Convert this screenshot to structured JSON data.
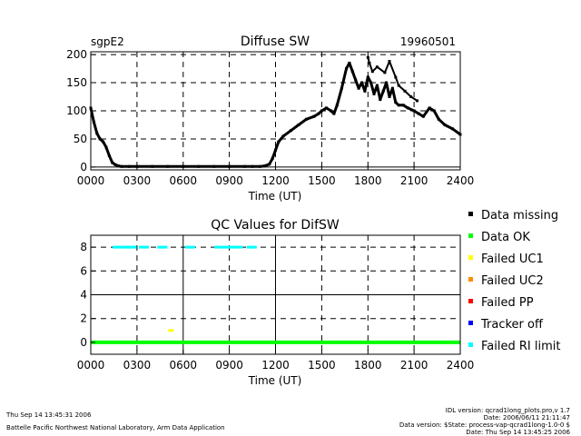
{
  "chart_data": [
    {
      "type": "scatter",
      "title": "Diffuse SW",
      "site_label": "sgpE2",
      "date_label": "19960501",
      "xlabel": "Time (UT)",
      "ylabel": "",
      "xlim": [
        0,
        24
      ],
      "ylim": [
        -5,
        205
      ],
      "x_ticks": [
        0,
        3,
        6,
        9,
        12,
        15,
        18,
        21,
        24
      ],
      "x_tick_labels": [
        "0000",
        "0300",
        "0600",
        "0900",
        "1200",
        "1500",
        "1800",
        "2100",
        "2400"
      ],
      "y_ticks": [
        0,
        50,
        100,
        150,
        200
      ],
      "y_tick_labels": [
        "0",
        "50",
        "100",
        "150",
        "200"
      ],
      "grid": "dashed",
      "series": [
        {
          "color": "#000000",
          "x": [
            0.0,
            0.2,
            0.4,
            0.6,
            0.8,
            1.0,
            1.2,
            1.4,
            1.6,
            1.8,
            2.0,
            2.5,
            3.0,
            4.0,
            5.0,
            6.0,
            7.0,
            8.0,
            9.0,
            10.0,
            10.5,
            11.0,
            11.3,
            11.6,
            11.8,
            12.0,
            12.2,
            12.5,
            13.0,
            13.5,
            14.0,
            14.5,
            14.8,
            15.0,
            15.3,
            15.6,
            15.8,
            16.0,
            16.3,
            16.6,
            16.8,
            17.0,
            17.2,
            17.4,
            17.6,
            17.8,
            18.0,
            18.2,
            18.4,
            18.6,
            18.8,
            19.0,
            19.2,
            19.4,
            19.6,
            19.8,
            20.0,
            20.3,
            20.6,
            21.0,
            21.3,
            21.6,
            22.0,
            22.3,
            22.6,
            23.0,
            23.5,
            24.0
          ],
          "y": [
            105,
            80,
            60,
            50,
            45,
            35,
            20,
            8,
            4,
            2,
            1,
            1,
            1,
            1,
            1,
            1,
            1,
            1,
            1,
            1,
            1,
            1,
            2,
            5,
            15,
            30,
            45,
            55,
            65,
            75,
            85,
            90,
            95,
            100,
            105,
            100,
            95,
            110,
            140,
            175,
            185,
            170,
            155,
            140,
            150,
            135,
            160,
            150,
            130,
            145,
            120,
            135,
            150,
            125,
            140,
            115,
            110,
            110,
            105,
            100,
            95,
            90,
            105,
            100,
            85,
            75,
            68,
            58
          ]
        },
        {
          "color": "#000000",
          "x": [
            18.0,
            18.1,
            18.3,
            18.6,
            19.1,
            19.4,
            19.8,
            20.0,
            20.4,
            20.8,
            21.2
          ],
          "y": [
            195,
            185,
            170,
            178,
            168,
            188,
            160,
            145,
            135,
            125,
            118
          ]
        }
      ]
    },
    {
      "type": "scatter",
      "title": "QC Values for DifSW",
      "xlabel": "Time (UT)",
      "ylabel": "",
      "xlim": [
        0,
        24
      ],
      "ylim": [
        -1,
        9
      ],
      "x_ticks": [
        0,
        3,
        6,
        9,
        12,
        15,
        18,
        21,
        24
      ],
      "x_tick_labels": [
        "0000",
        "0300",
        "0600",
        "0900",
        "1200",
        "1500",
        "1800",
        "2100",
        "2400"
      ],
      "y_ticks": [
        0,
        2,
        4,
        6,
        8
      ],
      "y_tick_labels": [
        "0",
        "2",
        "4",
        "6",
        "8"
      ],
      "grid": "dashed",
      "series": [
        {
          "name": "Data OK",
          "color": "#00ff00",
          "x": [
            0,
            24
          ],
          "y": [
            0,
            0
          ]
        },
        {
          "name": "Failed UC1",
          "color": "#ffff00",
          "x": [
            5.2
          ],
          "y": [
            1
          ]
        },
        {
          "name": "Failed RI limit",
          "color": "#00ffff",
          "x": [
            1.6,
            1.9,
            2.2,
            2.5,
            2.8,
            3.3,
            3.6,
            4.5,
            4.8,
            6.3,
            6.6,
            8.2,
            8.5,
            8.8,
            9.1,
            9.4,
            9.7,
            10.3,
            10.6
          ],
          "y": [
            8,
            8,
            8,
            8,
            8,
            8,
            8,
            8,
            8,
            8,
            8,
            8,
            8,
            8,
            8,
            8,
            8,
            8,
            8
          ]
        }
      ],
      "legend": {
        "placement": "right",
        "entries": [
          {
            "label": "Data missing",
            "color": "#000000"
          },
          {
            "label": "Data OK",
            "color": "#00ff00"
          },
          {
            "label": "Failed UC1",
            "color": "#ffff00"
          },
          {
            "label": "Failed UC2",
            "color": "#ff8c00"
          },
          {
            "label": "Failed PP",
            "color": "#ff0000"
          },
          {
            "label": "Tracker off",
            "color": "#0000ff"
          },
          {
            "label": "Failed RI limit",
            "color": "#00ffff"
          }
        ]
      }
    }
  ],
  "footer": {
    "timestamp": "Thu Sep 14 13:45:31 2006",
    "organization": "Battelle Pacific Northwest National Laboratory, Arm Data Application",
    "idl_version": "IDL version: qcrad1long_plots.pro,v 1.7",
    "version_date": "Date: 2006/06/11 21:11:47",
    "data_version": "Data version: $State: process-vap-qcrad1long-1.0-0 $",
    "data_date": "Date: Thu Sep 14 13:45:25 2006"
  }
}
